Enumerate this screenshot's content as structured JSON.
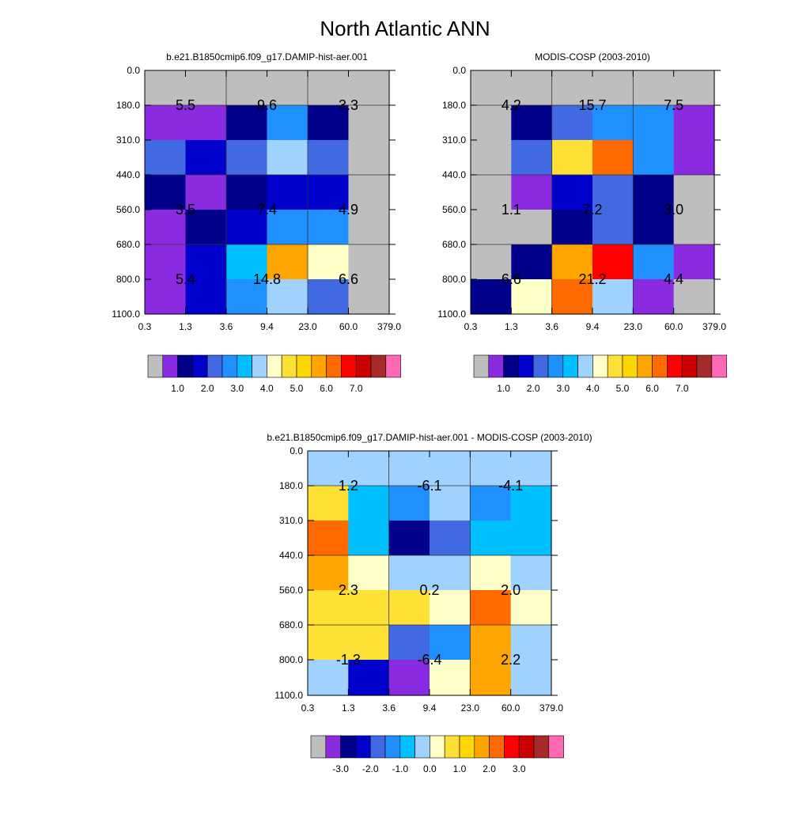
{
  "title": "North Atlantic ANN",
  "x_tick_labels": [
    "0.3",
    "1.3",
    "3.6",
    "9.4",
    "23.0",
    "60.0",
    "379.0"
  ],
  "y_tick_labels": [
    "0.0",
    "180.0",
    "310.0",
    "440.0",
    "560.0",
    "680.0",
    "800.0",
    "1100.0"
  ],
  "palette": {
    "missing": "#bebebe",
    "colors": [
      "#8a2be2",
      "#00008b",
      "#0000cd",
      "#4169e1",
      "#1e90ff",
      "#00bfff",
      "#a0d2ff",
      "#ffffc8",
      "#ffe135",
      "#ffd700",
      "#ffa500",
      "#ff6a00",
      "#ff0000",
      "#cd0000",
      "#a52a2a",
      "#ff69b4"
    ]
  },
  "chart_data": [
    {
      "type": "heatmap",
      "title": "b.e21.B1850cmip6.f09_g17.DAMIP-hist-aer.001",
      "cell_colors": [
        [
          "#bebebe",
          "#bebebe",
          "#bebebe",
          "#bebebe",
          "#bebebe",
          "#bebebe"
        ],
        [
          "#8a2be2",
          "#8a2be2",
          "#00008b",
          "#1e90ff",
          "#00008b",
          "#bebebe"
        ],
        [
          "#4169e1",
          "#0000cd",
          "#4169e1",
          "#a0d2ff",
          "#4169e1",
          "#bebebe"
        ],
        [
          "#00008b",
          "#8a2be2",
          "#00008b",
          "#0000cd",
          "#0000cd",
          "#bebebe"
        ],
        [
          "#8a2be2",
          "#00008b",
          "#0000cd",
          "#1e90ff",
          "#1e90ff",
          "#bebebe"
        ],
        [
          "#8a2be2",
          "#0000cd",
          "#00bfff",
          "#ffa500",
          "#ffffc8",
          "#bebebe"
        ],
        [
          "#8a2be2",
          "#0000cd",
          "#1e90ff",
          "#a0d2ff",
          "#4169e1",
          "#bebebe"
        ]
      ],
      "annotations": [
        {
          "x": 0,
          "y": 1,
          "text": "5.5"
        },
        {
          "x": 1,
          "y": 1,
          "text": "9.6"
        },
        {
          "x": 2,
          "y": 1,
          "text": "3.3"
        },
        {
          "x": 0,
          "y": 4,
          "text": "3.5"
        },
        {
          "x": 1,
          "y": 4,
          "text": "7.4"
        },
        {
          "x": 2,
          "y": 4,
          "text": "4.9"
        },
        {
          "x": 0,
          "y": 6,
          "text": "5.4"
        },
        {
          "x": 1,
          "y": 6,
          "text": "14.8"
        },
        {
          "x": 2,
          "y": 6,
          "text": "6.6"
        }
      ],
      "colorbar_labels": [
        "1.0",
        "2.0",
        "3.0",
        "4.0",
        "5.0",
        "6.0",
        "7.0"
      ]
    },
    {
      "type": "heatmap",
      "title": "MODIS-COSP (2003-2010)",
      "cell_colors": [
        [
          "#bebebe",
          "#bebebe",
          "#bebebe",
          "#bebebe",
          "#bebebe",
          "#bebebe"
        ],
        [
          "#bebebe",
          "#00008b",
          "#4169e1",
          "#1e90ff",
          "#1e90ff",
          "#8a2be2"
        ],
        [
          "#bebebe",
          "#4169e1",
          "#ffe135",
          "#ff6a00",
          "#1e90ff",
          "#8a2be2"
        ],
        [
          "#bebebe",
          "#8a2be2",
          "#0000cd",
          "#4169e1",
          "#00008b",
          "#bebebe"
        ],
        [
          "#bebebe",
          "#bebebe",
          "#00008b",
          "#4169e1",
          "#00008b",
          "#bebebe"
        ],
        [
          "#bebebe",
          "#00008b",
          "#ffa500",
          "#ff0000",
          "#1e90ff",
          "#8a2be2"
        ],
        [
          "#00008b",
          "#ffffc8",
          "#ff6a00",
          "#a0d2ff",
          "#8a2be2",
          "#bebebe"
        ]
      ],
      "annotations": [
        {
          "x": 0,
          "y": 1,
          "text": "4.2"
        },
        {
          "x": 1,
          "y": 1,
          "text": "15.7"
        },
        {
          "x": 2,
          "y": 1,
          "text": "7.5"
        },
        {
          "x": 0,
          "y": 4,
          "text": "1.1"
        },
        {
          "x": 1,
          "y": 4,
          "text": "7.2"
        },
        {
          "x": 2,
          "y": 4,
          "text": "3.0"
        },
        {
          "x": 0,
          "y": 6,
          "text": "6.6"
        },
        {
          "x": 1,
          "y": 6,
          "text": "21.2"
        },
        {
          "x": 2,
          "y": 6,
          "text": "4.4"
        }
      ],
      "colorbar_labels": [
        "1.0",
        "2.0",
        "3.0",
        "4.0",
        "5.0",
        "6.0",
        "7.0"
      ]
    },
    {
      "type": "heatmap",
      "title": "b.e21.B1850cmip6.f09_g17.DAMIP-hist-aer.001 - MODIS-COSP (2003-2010)",
      "cell_colors": [
        [
          "#a0d2ff",
          "#a0d2ff",
          "#a0d2ff",
          "#a0d2ff",
          "#a0d2ff",
          "#a0d2ff"
        ],
        [
          "#ffe135",
          "#00bfff",
          "#1e90ff",
          "#a0d2ff",
          "#1e90ff",
          "#00bfff"
        ],
        [
          "#ff6a00",
          "#00bfff",
          "#00008b",
          "#4169e1",
          "#00bfff",
          "#00bfff"
        ],
        [
          "#ffa500",
          "#ffffc8",
          "#a0d2ff",
          "#a0d2ff",
          "#ffffc8",
          "#a0d2ff"
        ],
        [
          "#ffe135",
          "#ffe135",
          "#ffe135",
          "#ffffc8",
          "#ff6a00",
          "#ffffc8"
        ],
        [
          "#ffe135",
          "#ffe135",
          "#4169e1",
          "#1e90ff",
          "#ffa500",
          "#a0d2ff"
        ],
        [
          "#a0d2ff",
          "#0000cd",
          "#8a2be2",
          "#ffffc8",
          "#ffa500",
          "#a0d2ff"
        ]
      ],
      "annotations": [
        {
          "x": 0,
          "y": 1,
          "text": "1.2"
        },
        {
          "x": 1,
          "y": 1,
          "text": "-6.1"
        },
        {
          "x": 2,
          "y": 1,
          "text": "-4.1"
        },
        {
          "x": 0,
          "y": 4,
          "text": "2.3"
        },
        {
          "x": 1,
          "y": 4,
          "text": "0.2"
        },
        {
          "x": 2,
          "y": 4,
          "text": "2.0"
        },
        {
          "x": 0,
          "y": 6,
          "text": "-1.3"
        },
        {
          "x": 1,
          "y": 6,
          "text": "-6.4"
        },
        {
          "x": 2,
          "y": 6,
          "text": "2.2"
        }
      ],
      "colorbar_labels": [
        "-3.0",
        "-2.0",
        "-1.0",
        "0.0",
        "1.0",
        "2.0",
        "3.0"
      ]
    }
  ]
}
